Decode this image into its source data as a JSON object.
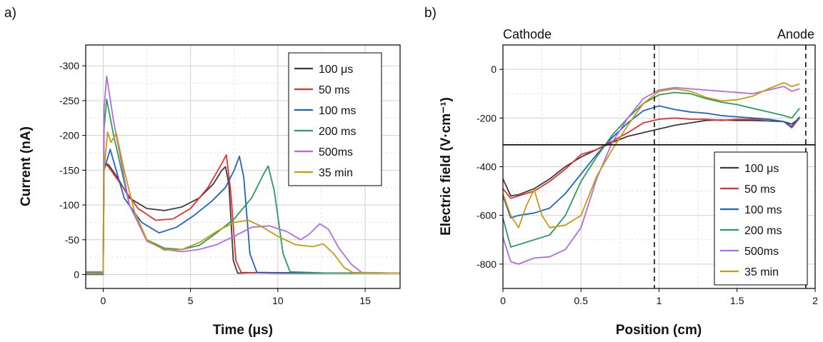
{
  "chart_data": [
    {
      "type": "line",
      "panel_label": "a)",
      "xlabel": "Time (μs)",
      "ylabel": "Current (nA)",
      "xlim": [
        -1,
        17
      ],
      "ylim": [
        20,
        -330
      ],
      "y_axis_reversed": true,
      "xticks": [
        0,
        5,
        10,
        15
      ],
      "yticks": [
        0,
        -50,
        -100,
        -150,
        -200,
        -250,
        -300
      ],
      "grid": true,
      "legend_position": "top-right",
      "series": [
        {
          "name": "100 μs",
          "color": "#3c3c3c",
          "points": [
            [
              -1,
              -3
            ],
            [
              0,
              -2
            ],
            [
              0.05,
              -160
            ],
            [
              0.3,
              -158
            ],
            [
              0.8,
              -140
            ],
            [
              1.5,
              -110
            ],
            [
              2.5,
              -95
            ],
            [
              3.5,
              -92
            ],
            [
              4.5,
              -97
            ],
            [
              5.5,
              -110
            ],
            [
              6.3,
              -130
            ],
            [
              6.8,
              -150
            ],
            [
              7.0,
              -155
            ],
            [
              7.2,
              -130
            ],
            [
              7.45,
              -20
            ],
            [
              7.7,
              -2
            ],
            [
              9,
              -3
            ],
            [
              12,
              -2
            ],
            [
              17,
              -2
            ]
          ]
        },
        {
          "name": "50 ms",
          "color": "#e8312f",
          "points": [
            [
              -1,
              -2
            ],
            [
              0,
              -1
            ],
            [
              0.05,
              -160
            ],
            [
              0.3,
              -155
            ],
            [
              1.0,
              -130
            ],
            [
              2.0,
              -95
            ],
            [
              3.0,
              -78
            ],
            [
              4.0,
              -80
            ],
            [
              5.0,
              -95
            ],
            [
              6.0,
              -125
            ],
            [
              6.8,
              -160
            ],
            [
              7.05,
              -172
            ],
            [
              7.3,
              -120
            ],
            [
              7.6,
              -20
            ],
            [
              7.9,
              -3
            ],
            [
              10,
              -2
            ],
            [
              17,
              -2
            ]
          ]
        },
        {
          "name": "100 ms",
          "color": "#1f63c9",
          "points": [
            [
              -1,
              -1
            ],
            [
              0,
              -1
            ],
            [
              0.05,
              -150
            ],
            [
              0.4,
              -180
            ],
            [
              1.2,
              -110
            ],
            [
              2.2,
              -75
            ],
            [
              3.2,
              -60
            ],
            [
              4.2,
              -68
            ],
            [
              5.2,
              -85
            ],
            [
              6.2,
              -105
            ],
            [
              7.0,
              -125
            ],
            [
              7.5,
              -150
            ],
            [
              7.8,
              -170
            ],
            [
              8.05,
              -140
            ],
            [
              8.4,
              -30
            ],
            [
              8.8,
              -3
            ],
            [
              12,
              -2
            ],
            [
              17,
              -2
            ]
          ]
        },
        {
          "name": "200 ms",
          "color": "#2a9d5c",
          "points": [
            [
              -1,
              0
            ],
            [
              0,
              0
            ],
            [
              0.05,
              -210
            ],
            [
              0.2,
              -252
            ],
            [
              0.6,
              -200
            ],
            [
              1.5,
              -100
            ],
            [
              2.5,
              -50
            ],
            [
              3.5,
              -38
            ],
            [
              4.5,
              -36
            ],
            [
              5.5,
              -42
            ],
            [
              6.5,
              -60
            ],
            [
              7.5,
              -80
            ],
            [
              8.5,
              -110
            ],
            [
              9.2,
              -145
            ],
            [
              9.45,
              -156
            ],
            [
              9.8,
              -120
            ],
            [
              10.3,
              -30
            ],
            [
              10.7,
              -4
            ],
            [
              13,
              -2
            ],
            [
              17,
              -2
            ]
          ]
        },
        {
          "name": "500ms",
          "color": "#b36be3",
          "points": [
            [
              -1,
              -4
            ],
            [
              0,
              -4
            ],
            [
              0.05,
              -240
            ],
            [
              0.2,
              -285
            ],
            [
              0.6,
              -220
            ],
            [
              1.5,
              -100
            ],
            [
              2.5,
              -48
            ],
            [
              3.5,
              -36
            ],
            [
              4.5,
              -33
            ],
            [
              5.5,
              -36
            ],
            [
              6.5,
              -43
            ],
            [
              7.5,
              -55
            ],
            [
              8.5,
              -68
            ],
            [
              9.5,
              -70
            ],
            [
              10.5,
              -62
            ],
            [
              11.3,
              -50
            ],
            [
              11.8,
              -58
            ],
            [
              12.4,
              -73
            ],
            [
              12.9,
              -65
            ],
            [
              13.5,
              -38
            ],
            [
              14.2,
              -15
            ],
            [
              14.8,
              -3
            ],
            [
              17,
              -2
            ]
          ]
        },
        {
          "name": "35 min",
          "color": "#c89a10",
          "points": [
            [
              -1,
              -2
            ],
            [
              0,
              -2
            ],
            [
              0.05,
              -150
            ],
            [
              0.25,
              -205
            ],
            [
              0.45,
              -190
            ],
            [
              0.75,
              -203
            ],
            [
              1.2,
              -150
            ],
            [
              1.8,
              -90
            ],
            [
              2.5,
              -50
            ],
            [
              3.5,
              -35
            ],
            [
              4.5,
              -36
            ],
            [
              5.5,
              -46
            ],
            [
              6.5,
              -62
            ],
            [
              7.5,
              -75
            ],
            [
              8.3,
              -78
            ],
            [
              9.0,
              -70
            ],
            [
              10.0,
              -55
            ],
            [
              11.0,
              -43
            ],
            [
              12.0,
              -40
            ],
            [
              12.6,
              -44
            ],
            [
              13.2,
              -30
            ],
            [
              13.8,
              -10
            ],
            [
              14.3,
              -3
            ],
            [
              17,
              -2
            ]
          ]
        }
      ]
    },
    {
      "type": "line",
      "panel_label": "b)",
      "xlabel": "Position (cm)",
      "ylabel": "Electric field (V·cm⁻¹)",
      "xlim": [
        0,
        2
      ],
      "ylim": [
        -900,
        100
      ],
      "xticks": [
        0,
        0.5,
        1,
        1.5,
        2
      ],
      "yticks": [
        0,
        -200,
        -400,
        -600,
        -800
      ],
      "grid": true,
      "legend_position": "bottom-right",
      "annotations": {
        "cathode": "Cathode",
        "anode": "Anode"
      },
      "dashed_vlines": [
        0.97,
        1.94
      ],
      "hline": -310,
      "series": [
        {
          "name": "100 μs",
          "color": "#3c3c3c",
          "points": [
            [
              0,
              -450
            ],
            [
              0.05,
              -520
            ],
            [
              0.1,
              -515
            ],
            [
              0.2,
              -490
            ],
            [
              0.3,
              -450
            ],
            [
              0.4,
              -400
            ],
            [
              0.5,
              -360
            ],
            [
              0.6,
              -330
            ],
            [
              0.7,
              -300
            ],
            [
              0.8,
              -275
            ],
            [
              0.9,
              -260
            ],
            [
              1.0,
              -245
            ],
            [
              1.1,
              -230
            ],
            [
              1.2,
              -220
            ],
            [
              1.3,
              -210
            ],
            [
              1.4,
              -208
            ],
            [
              1.5,
              -210
            ],
            [
              1.6,
              -210
            ],
            [
              1.7,
              -212
            ],
            [
              1.8,
              -215
            ],
            [
              1.85,
              -225
            ],
            [
              1.9,
              -200
            ]
          ]
        },
        {
          "name": "50 ms",
          "color": "#e8312f",
          "points": [
            [
              0,
              -490
            ],
            [
              0.05,
              -530
            ],
            [
              0.1,
              -520
            ],
            [
              0.2,
              -500
            ],
            [
              0.3,
              -460
            ],
            [
              0.4,
              -410
            ],
            [
              0.5,
              -350
            ],
            [
              0.6,
              -330
            ],
            [
              0.7,
              -295
            ],
            [
              0.8,
              -260
            ],
            [
              0.9,
              -220
            ],
            [
              1.0,
              -205
            ],
            [
              1.1,
              -200
            ],
            [
              1.2,
              -205
            ],
            [
              1.3,
              -205
            ],
            [
              1.4,
              -210
            ],
            [
              1.5,
              -205
            ],
            [
              1.6,
              -205
            ],
            [
              1.7,
              -205
            ],
            [
              1.8,
              -215
            ],
            [
              1.85,
              -240
            ],
            [
              1.9,
              -200
            ]
          ]
        },
        {
          "name": "100 ms",
          "color": "#1f63c9",
          "points": [
            [
              0,
              -520
            ],
            [
              0.05,
              -610
            ],
            [
              0.1,
              -600
            ],
            [
              0.2,
              -590
            ],
            [
              0.3,
              -570
            ],
            [
              0.4,
              -510
            ],
            [
              0.5,
              -430
            ],
            [
              0.6,
              -350
            ],
            [
              0.7,
              -280
            ],
            [
              0.8,
              -220
            ],
            [
              0.9,
              -170
            ],
            [
              1.0,
              -150
            ],
            [
              1.1,
              -165
            ],
            [
              1.2,
              -175
            ],
            [
              1.3,
              -180
            ],
            [
              1.4,
              -190
            ],
            [
              1.5,
              -195
            ],
            [
              1.6,
              -200
            ],
            [
              1.7,
              -205
            ],
            [
              1.8,
              -215
            ],
            [
              1.85,
              -235
            ],
            [
              1.9,
              -195
            ]
          ]
        },
        {
          "name": "200 ms",
          "color": "#2a9d5c",
          "points": [
            [
              0,
              -610
            ],
            [
              0.05,
              -730
            ],
            [
              0.1,
              -720
            ],
            [
              0.2,
              -700
            ],
            [
              0.3,
              -680
            ],
            [
              0.4,
              -600
            ],
            [
              0.5,
              -460
            ],
            [
              0.6,
              -360
            ],
            [
              0.7,
              -270
            ],
            [
              0.8,
              -200
            ],
            [
              0.9,
              -140
            ],
            [
              1.0,
              -105
            ],
            [
              1.1,
              -95
            ],
            [
              1.2,
              -100
            ],
            [
              1.3,
              -120
            ],
            [
              1.4,
              -135
            ],
            [
              1.5,
              -145
            ],
            [
              1.6,
              -160
            ],
            [
              1.7,
              -175
            ],
            [
              1.8,
              -190
            ],
            [
              1.85,
              -200
            ],
            [
              1.9,
              -160
            ]
          ]
        },
        {
          "name": "500ms",
          "color": "#b36be3",
          "points": [
            [
              0,
              -690
            ],
            [
              0.05,
              -790
            ],
            [
              0.1,
              -800
            ],
            [
              0.2,
              -775
            ],
            [
              0.3,
              -770
            ],
            [
              0.4,
              -740
            ],
            [
              0.5,
              -650
            ],
            [
              0.6,
              -450
            ],
            [
              0.7,
              -300
            ],
            [
              0.8,
              -200
            ],
            [
              0.9,
              -120
            ],
            [
              1.0,
              -85
            ],
            [
              1.1,
              -75
            ],
            [
              1.2,
              -80
            ],
            [
              1.3,
              -85
            ],
            [
              1.4,
              -90
            ],
            [
              1.5,
              -95
            ],
            [
              1.6,
              -100
            ],
            [
              1.7,
              -85
            ],
            [
              1.8,
              -70
            ],
            [
              1.85,
              -90
            ],
            [
              1.9,
              -80
            ]
          ]
        },
        {
          "name": "35 min",
          "color": "#c89a10",
          "points": [
            [
              0,
              -510
            ],
            [
              0.05,
              -600
            ],
            [
              0.1,
              -650
            ],
            [
              0.15,
              -560
            ],
            [
              0.2,
              -495
            ],
            [
              0.25,
              -600
            ],
            [
              0.3,
              -650
            ],
            [
              0.4,
              -640
            ],
            [
              0.5,
              -600
            ],
            [
              0.6,
              -440
            ],
            [
              0.7,
              -330
            ],
            [
              0.8,
              -230
            ],
            [
              0.9,
              -140
            ],
            [
              1.0,
              -90
            ],
            [
              1.1,
              -80
            ],
            [
              1.2,
              -90
            ],
            [
              1.3,
              -115
            ],
            [
              1.4,
              -130
            ],
            [
              1.5,
              -125
            ],
            [
              1.6,
              -110
            ],
            [
              1.7,
              -80
            ],
            [
              1.8,
              -55
            ],
            [
              1.85,
              -70
            ],
            [
              1.9,
              -60
            ]
          ]
        }
      ]
    }
  ]
}
